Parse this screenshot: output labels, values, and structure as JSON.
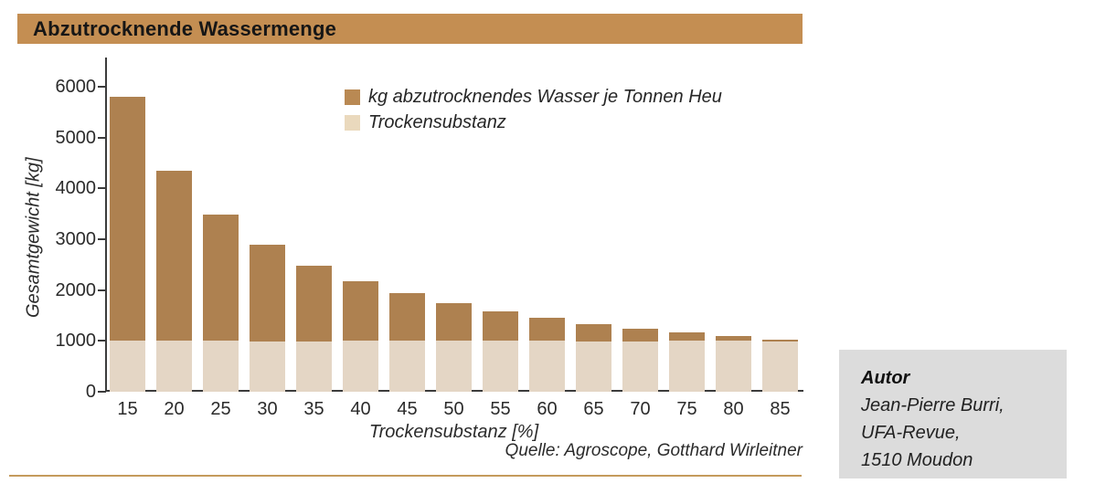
{
  "header": {
    "title": "Abzutrocknende Wassermenge"
  },
  "colors": {
    "title_band": "#c48e52",
    "water_bar": "#ae8150",
    "dry_bar": "#e4d6c5",
    "legend_water": "#b98953",
    "legend_dry": "#ead9bd",
    "axis": "#3c3c3c",
    "bottom_rule": "#c49a5c",
    "author_box_bg": "#dcdcdc"
  },
  "chart_data": {
    "type": "bar",
    "stacked": true,
    "title": "Abzutrocknende Wassermenge",
    "xlabel": "Trockensubstanz [%]",
    "ylabel": "Gesamtgewicht [kg]",
    "categories": [
      "15",
      "20",
      "25",
      "30",
      "35",
      "40",
      "45",
      "50",
      "55",
      "60",
      "65",
      "70",
      "75",
      "80",
      "85"
    ],
    "series": [
      {
        "name": "Trockensubstanz",
        "color": "#e4d6c5",
        "values": [
          1000,
          1000,
          1000,
          1000,
          1000,
          1000,
          1000,
          1000,
          1000,
          1000,
          1000,
          1000,
          1000,
          1000,
          1000
        ]
      },
      {
        "name": "kg abzutrocknendes Wasser je Tonnen Heu",
        "color": "#ae8150",
        "values": [
          4800,
          3350,
          2480,
          1900,
          1486,
          1175,
          933,
          740,
          582,
          450,
          338,
          243,
          160,
          88,
          24
        ]
      }
    ],
    "totals": [
      5800,
      4350,
      3480,
      2900,
      2486,
      2175,
      1933,
      1740,
      1582,
      1450,
      1338,
      1243,
      1160,
      1088,
      1024
    ],
    "ylim": [
      0,
      6000
    ],
    "yticks": [
      0,
      1000,
      2000,
      3000,
      4000,
      5000,
      6000
    ],
    "grid": false,
    "legend_position": "top-inside"
  },
  "legend": {
    "items": [
      {
        "label": "kg abzutrocknendes Wasser je Tonnen Heu"
      },
      {
        "label": "Trockensubstanz"
      }
    ]
  },
  "source": {
    "label": "Quelle: Agroscope, Gotthard Wirleitner"
  },
  "author_box": {
    "heading": "Autor",
    "lines": [
      "Jean-Pierre Burri,",
      "UFA-Revue,",
      "1510 Moudon"
    ]
  }
}
